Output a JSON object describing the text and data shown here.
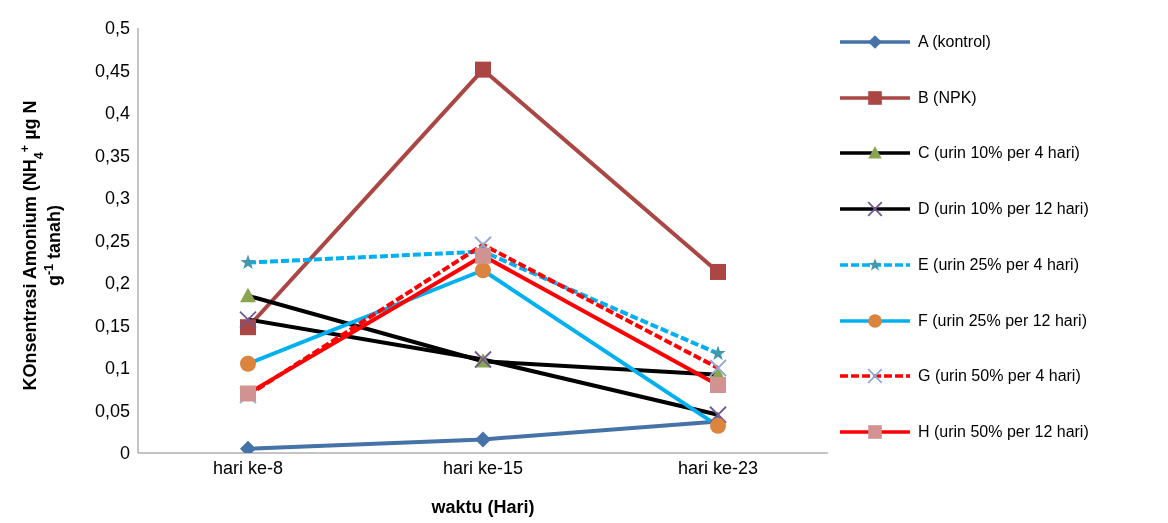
{
  "chart_data": {
    "type": "line",
    "xlabel": "waktu (Hari)",
    "ylabel": "KOnsentrasi Amonium (NH$_{4}$$^{+}$ µg N g$^{-1}$ tanah)",
    "categories": [
      "hari ke-8",
      "hari ke-15",
      "hari ke-23"
    ],
    "ylim": [
      0,
      0.5
    ],
    "yticks": [
      0,
      {
        "value": 0.05,
        "label": "0,05"
      },
      {
        "value": 0.1,
        "label": "0,1"
      },
      {
        "value": 0.15,
        "label": "0,15"
      },
      {
        "value": 0.2,
        "label": "0,2"
      },
      {
        "value": 0.25,
        "label": "0,25"
      },
      {
        "value": 0.3,
        "label": "0,3"
      },
      {
        "value": 0.35,
        "label": "0,35"
      },
      {
        "value": 0.4,
        "label": "0,4"
      },
      {
        "value": 0.45,
        "label": "0,45"
      },
      {
        "value": 0.5,
        "label": "0,5"
      }
    ],
    "grid": false,
    "legend": "right",
    "series": [
      {
        "name": "A (kontrol)",
        "color": "#4572a7",
        "marker": "diamond",
        "line_style": "solid",
        "values": [
          0.005,
          0.016,
          0.037
        ]
      },
      {
        "name": "B (NPK)",
        "color": "#aa4643",
        "marker": "square",
        "line_style": "solid",
        "values": [
          0.148,
          0.451,
          0.213
        ]
      },
      {
        "name": "C (urin 10% per 4 hari)",
        "color": "#000000",
        "marker": "triangle",
        "line_style": "solid",
        "values": [
          0.185,
          0.108,
          0.092
        ]
      },
      {
        "name": "D (urin 10% per 12 hari)",
        "color": "#000000",
        "marker": "cross",
        "line_style": "solid",
        "values": [
          0.157,
          0.11,
          0.045
        ]
      },
      {
        "name": "E (urin 25% per 4 hari)",
        "color": "#00b0f0",
        "marker": "star",
        "line_style": "dashed",
        "values": [
          0.224,
          0.237,
          0.117
        ]
      },
      {
        "name": "F (urin 25% per 12 hari)",
        "color": "#00b0f0",
        "marker": "circle",
        "line_style": "solid",
        "values": [
          0.105,
          0.215,
          0.032
        ]
      },
      {
        "name": "G (urin 50% per 4 hari)",
        "color": "#ff0000",
        "marker": "cross",
        "line_style": "dashed",
        "values": [
          0.068,
          0.245,
          0.1
        ]
      },
      {
        "name": "H (urin 50% per 12 hari)",
        "color": "#ff0000",
        "marker": "square",
        "line_style": "solid",
        "values": [
          0.07,
          0.232,
          0.08
        ]
      }
    ]
  }
}
